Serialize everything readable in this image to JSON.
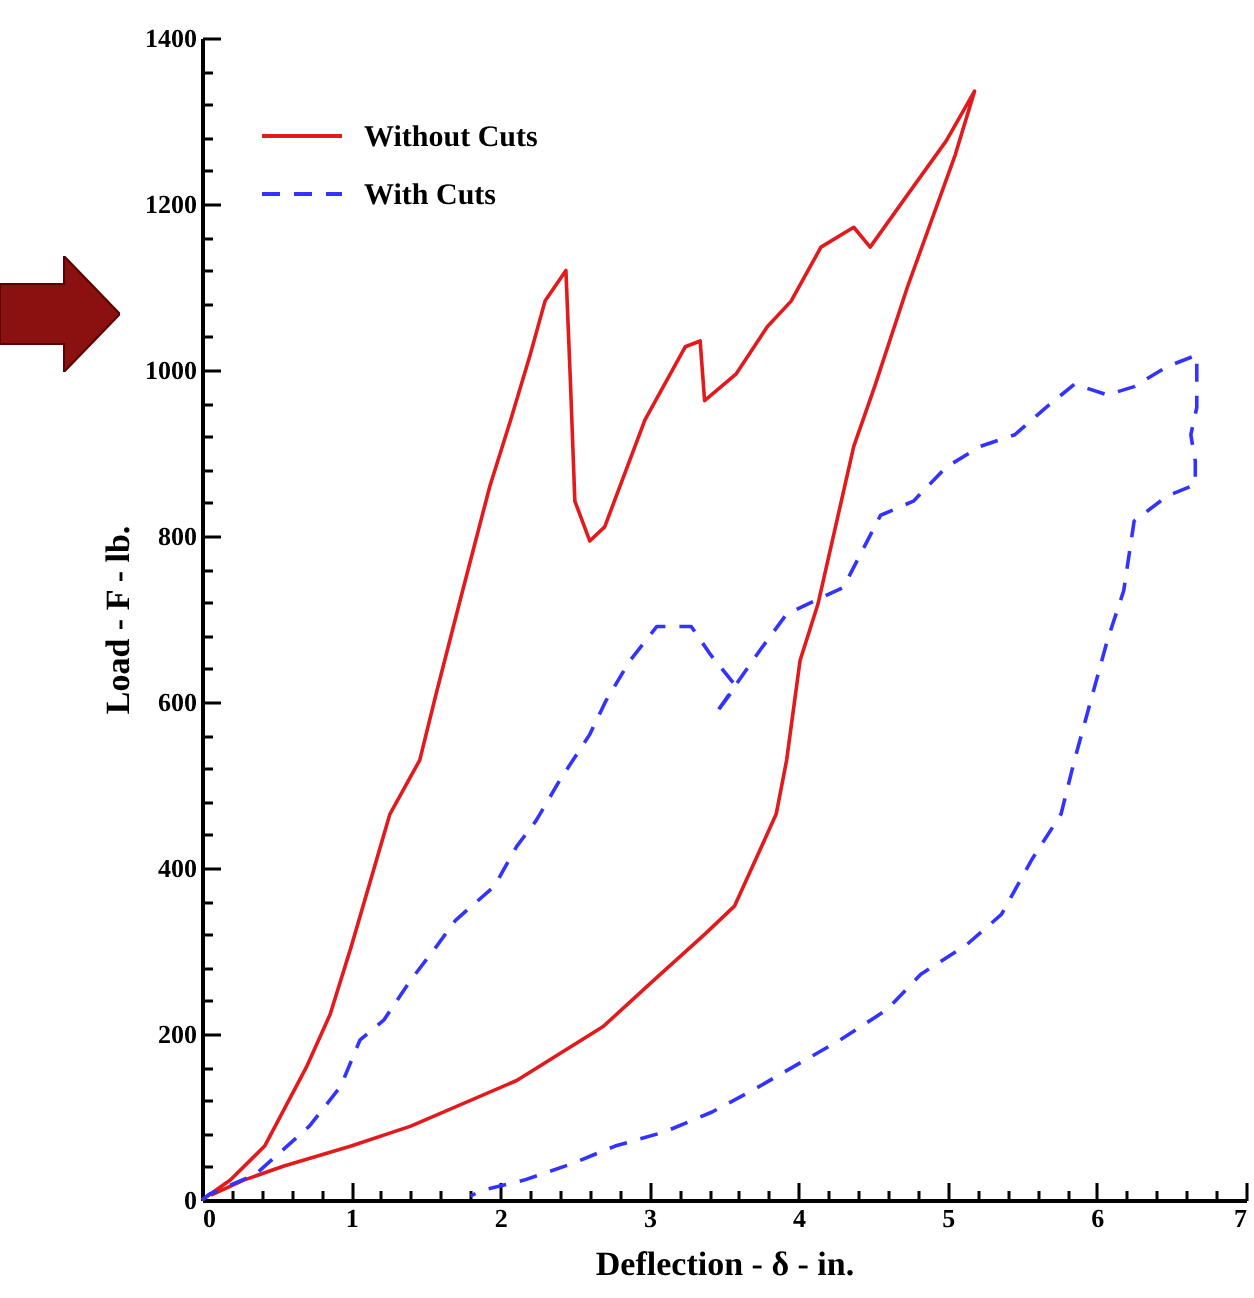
{
  "chart_data": {
    "type": "line",
    "xlabel": "Deflection - δ - in.",
    "ylabel": "Load - F - lb.",
    "xlim": [
      0,
      7
    ],
    "ylim": [
      0,
      1400
    ],
    "xticks": [
      0,
      {
        "value": 0.2,
        "label": null
      },
      {
        "value": 0.4,
        "label": null
      },
      {
        "value": 0.6,
        "label": null
      },
      {
        "value": 0.8,
        "label": null
      },
      1,
      {
        "value": 1.2,
        "label": null
      },
      {
        "value": 1.4,
        "label": null
      },
      {
        "value": 1.6,
        "label": null
      },
      {
        "value": 1.8,
        "label": null
      },
      2,
      {
        "value": 2.2,
        "label": null
      },
      {
        "value": 2.4,
        "label": null
      },
      {
        "value": 2.6,
        "label": null
      },
      {
        "value": 2.8,
        "label": null
      },
      3,
      {
        "value": 3.2,
        "label": null
      },
      {
        "value": 3.4,
        "label": null
      },
      {
        "value": 3.6,
        "label": null
      },
      {
        "value": 3.8,
        "label": null
      },
      4,
      {
        "value": 4.2,
        "label": null
      },
      {
        "value": 4.4,
        "label": null
      },
      {
        "value": 4.6,
        "label": null
      },
      {
        "value": 4.8,
        "label": null
      },
      5,
      {
        "value": 5.2,
        "label": null
      },
      {
        "value": 5.4,
        "label": null
      },
      {
        "value": 5.6,
        "label": null
      },
      {
        "value": 5.8,
        "label": null
      },
      6,
      {
        "value": 6.2,
        "label": null
      },
      {
        "value": 6.4,
        "label": null
      },
      {
        "value": 6.6,
        "label": null
      },
      {
        "value": 6.8,
        "label": null
      },
      7
    ],
    "yticks": [
      0,
      {
        "value": 40,
        "label": null
      },
      {
        "value": 80,
        "label": null
      },
      {
        "value": 120,
        "label": null
      },
      {
        "value": 160,
        "label": null
      },
      200,
      {
        "value": 240,
        "label": null
      },
      {
        "value": 280,
        "label": null
      },
      {
        "value": 320,
        "label": null
      },
      {
        "value": 360,
        "label": null
      },
      400,
      {
        "value": 440,
        "label": null
      },
      {
        "value": 480,
        "label": null
      },
      {
        "value": 520,
        "label": null
      },
      {
        "value": 560,
        "label": null
      },
      600,
      {
        "value": 640,
        "label": null
      },
      {
        "value": 680,
        "label": null
      },
      {
        "value": 720,
        "label": null
      },
      {
        "value": 760,
        "label": null
      },
      800,
      {
        "value": 840,
        "label": null
      },
      {
        "value": 880,
        "label": null
      },
      {
        "value": 920,
        "label": null
      },
      {
        "value": 960,
        "label": null
      },
      1000,
      {
        "value": 1040,
        "label": null
      },
      {
        "value": 1080,
        "label": null
      },
      {
        "value": 1120,
        "label": null
      },
      {
        "value": 1160,
        "label": null
      },
      1200,
      {
        "value": 1240,
        "label": null
      },
      {
        "value": 1280,
        "label": null
      },
      {
        "value": 1320,
        "label": null
      },
      {
        "value": 1360,
        "label": null
      },
      1400
    ],
    "grid": false,
    "legend": "top left",
    "series": [
      {
        "name": "Without Cuts",
        "color": "#e31a1c",
        "line_style": "solid",
        "x": [
          0,
          0.19,
          0.42,
          0.7,
          0.86,
          1.0,
          1.26,
          1.46,
          1.57,
          1.73,
          1.93,
          2.07,
          2.2,
          2.3,
          2.44,
          2.47,
          2.5,
          2.6,
          2.7,
          2.97,
          3.24,
          3.34,
          3.37,
          3.58,
          3.79,
          3.95,
          4.15,
          4.37,
          4.48,
          4.73,
          4.99,
          5.18,
          5.05,
          4.73,
          4.51,
          4.37,
          4.13,
          4.01,
          3.92,
          3.85,
          3.77,
          3.57,
          3.37,
          3.03,
          2.69,
          2.11,
          1.4,
          1.0,
          0.55,
          0.28,
          0.06
        ],
        "values": [
          0,
          24,
          65,
          160,
          224,
          305,
          465,
          530,
          610,
          722,
          860,
          940,
          1018,
          1083,
          1120,
          987,
          842,
          794,
          811,
          940,
          1028,
          1035,
          963,
          995,
          1052,
          1083,
          1148,
          1172,
          1148,
          1211,
          1276,
          1336,
          1259,
          1100,
          980,
          908,
          718,
          650,
          530,
          465,
          433,
          354,
          320,
          265,
          209,
          144,
          89,
          65,
          41,
          24,
          6
        ]
      },
      {
        "name": "With Cuts",
        "color": "#3333ff",
        "line_style": "dashed",
        "x": [
          0,
          0.05,
          0.36,
          0.72,
          0.93,
          1.06,
          1.22,
          1.4,
          1.57,
          1.7,
          1.96,
          2.11,
          2.24,
          2.4,
          2.6,
          2.71,
          2.87,
          3.05,
          3.28,
          3.41,
          3.58,
          3.44,
          3.74,
          3.92,
          4.3,
          4.55,
          4.77,
          4.99,
          5.22,
          5.45,
          5.66,
          5.85,
          6.07,
          6.25,
          6.47,
          6.67,
          6.67,
          6.63,
          6.66,
          6.66,
          6.47,
          6.25,
          6.18,
          6.07,
          5.96,
          5.85,
          5.76,
          5.56,
          5.36,
          5.13,
          4.82,
          4.59,
          4.28,
          3.97,
          3.71,
          3.42,
          3.1,
          2.77,
          2.47,
          2.16,
          1.89,
          1.8
        ],
        "values": [
          0,
          7,
          31,
          89,
          137,
          193,
          217,
          265,
          305,
          337,
          378,
          426,
          457,
          506,
          561,
          602,
          650,
          691,
          691,
          657,
          619,
          585,
          662,
          706,
          738,
          825,
          842,
          883,
          908,
          922,
          955,
          983,
          970,
          980,
          1004,
          1018,
          955,
          922,
          890,
          862,
          848,
          818,
          734,
          674,
          602,
          530,
          465,
          409,
          344,
          308,
          272,
          229,
          193,
          161,
          134,
          106,
          82,
          65,
          43,
          24,
          12,
          5
        ]
      }
    ]
  }
}
